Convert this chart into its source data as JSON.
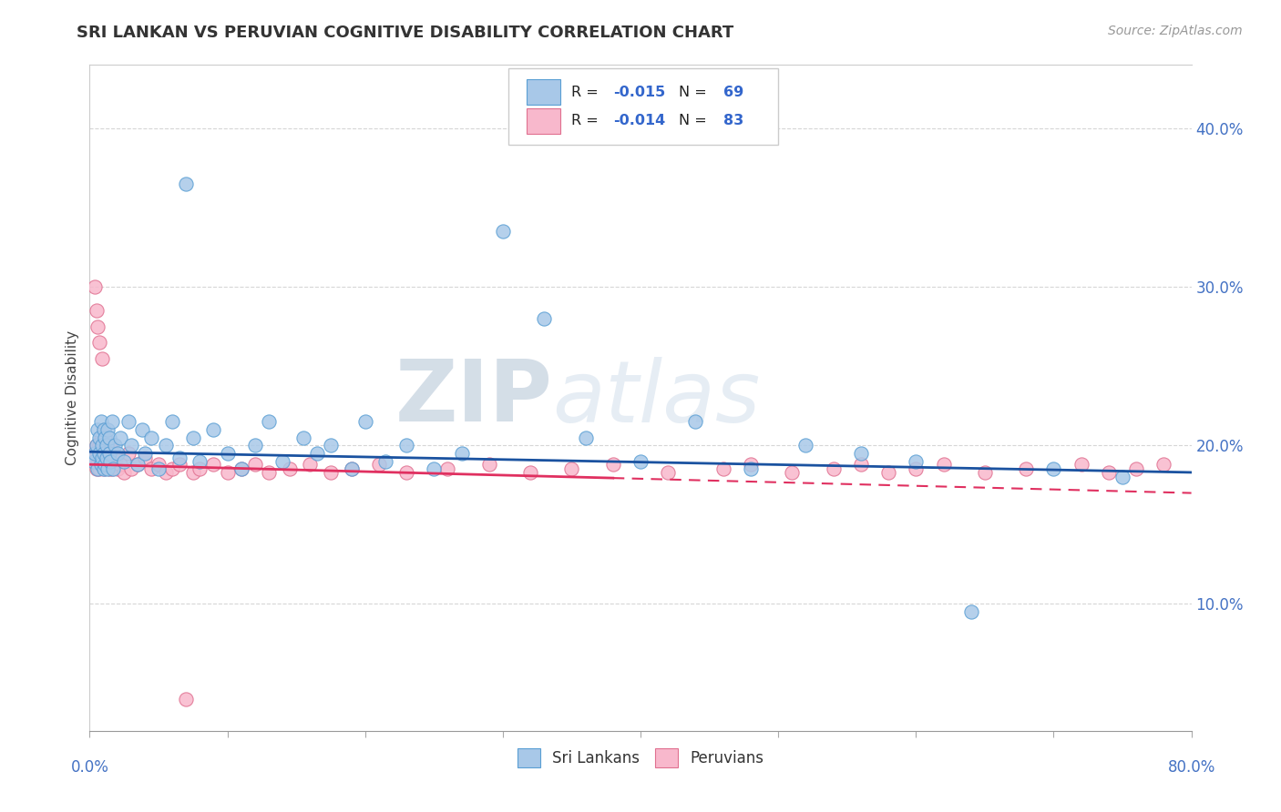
{
  "title": "SRI LANKAN VS PERUVIAN COGNITIVE DISABILITY CORRELATION CHART",
  "source": "Source: ZipAtlas.com",
  "ylabel": "Cognitive Disability",
  "xlim": [
    0.0,
    0.8
  ],
  "ylim": [
    0.02,
    0.44
  ],
  "yticks": [
    0.1,
    0.2,
    0.3,
    0.4
  ],
  "ytick_labels": [
    "10.0%",
    "20.0%",
    "30.0%",
    "40.0%"
  ],
  "sri_lankan_color": "#a8c8e8",
  "sri_lankan_edge": "#5a9fd4",
  "peruvian_color": "#f8b8cc",
  "peruvian_edge": "#e07090",
  "trend_sri_color": "#1a52a0",
  "trend_per_color": "#e03060",
  "legend_label1": "Sri Lankans",
  "legend_label2": "Peruvians",
  "watermark_zip": "ZIP",
  "watermark_atlas": "atlas",
  "background_color": "#ffffff",
  "grid_color": "#cccccc",
  "sri_x": [
    0.003,
    0.004,
    0.005,
    0.006,
    0.006,
    0.007,
    0.007,
    0.008,
    0.008,
    0.009,
    0.009,
    0.01,
    0.01,
    0.01,
    0.011,
    0.011,
    0.012,
    0.012,
    0.013,
    0.013,
    0.014,
    0.014,
    0.015,
    0.016,
    0.017,
    0.018,
    0.02,
    0.022,
    0.025,
    0.028,
    0.03,
    0.035,
    0.038,
    0.04,
    0.045,
    0.05,
    0.055,
    0.06,
    0.065,
    0.07,
    0.075,
    0.08,
    0.09,
    0.1,
    0.11,
    0.12,
    0.13,
    0.14,
    0.155,
    0.165,
    0.175,
    0.19,
    0.2,
    0.215,
    0.23,
    0.25,
    0.27,
    0.3,
    0.33,
    0.36,
    0.4,
    0.44,
    0.48,
    0.52,
    0.56,
    0.6,
    0.64,
    0.7,
    0.75
  ],
  "sri_y": [
    0.19,
    0.195,
    0.2,
    0.185,
    0.21,
    0.195,
    0.205,
    0.188,
    0.215,
    0.192,
    0.2,
    0.185,
    0.195,
    0.21,
    0.188,
    0.205,
    0.192,
    0.2,
    0.185,
    0.21,
    0.195,
    0.205,
    0.19,
    0.215,
    0.185,
    0.2,
    0.195,
    0.205,
    0.19,
    0.215,
    0.2,
    0.188,
    0.21,
    0.195,
    0.205,
    0.185,
    0.2,
    0.215,
    0.192,
    0.365,
    0.205,
    0.19,
    0.21,
    0.195,
    0.185,
    0.2,
    0.215,
    0.19,
    0.205,
    0.195,
    0.2,
    0.185,
    0.215,
    0.19,
    0.2,
    0.185,
    0.195,
    0.335,
    0.28,
    0.205,
    0.19,
    0.215,
    0.185,
    0.2,
    0.195,
    0.19,
    0.095,
    0.185,
    0.18
  ],
  "per_x": [
    0.003,
    0.004,
    0.004,
    0.005,
    0.005,
    0.005,
    0.006,
    0.006,
    0.006,
    0.007,
    0.007,
    0.007,
    0.008,
    0.008,
    0.008,
    0.009,
    0.009,
    0.009,
    0.01,
    0.01,
    0.01,
    0.01,
    0.01,
    0.011,
    0.011,
    0.012,
    0.012,
    0.013,
    0.013,
    0.014,
    0.014,
    0.015,
    0.015,
    0.016,
    0.017,
    0.018,
    0.019,
    0.02,
    0.022,
    0.025,
    0.028,
    0.03,
    0.035,
    0.04,
    0.045,
    0.05,
    0.055,
    0.06,
    0.065,
    0.07,
    0.075,
    0.08,
    0.09,
    0.1,
    0.11,
    0.12,
    0.13,
    0.145,
    0.16,
    0.175,
    0.19,
    0.21,
    0.23,
    0.26,
    0.29,
    0.32,
    0.35,
    0.38,
    0.42,
    0.46,
    0.48,
    0.51,
    0.54,
    0.56,
    0.58,
    0.6,
    0.62,
    0.65,
    0.68,
    0.72,
    0.74,
    0.76,
    0.78
  ],
  "per_y": [
    0.19,
    0.3,
    0.195,
    0.285,
    0.2,
    0.185,
    0.275,
    0.195,
    0.188,
    0.265,
    0.2,
    0.185,
    0.205,
    0.195,
    0.19,
    0.255,
    0.2,
    0.188,
    0.21,
    0.195,
    0.185,
    0.2,
    0.188,
    0.205,
    0.192,
    0.195,
    0.188,
    0.2,
    0.192,
    0.185,
    0.195,
    0.2,
    0.188,
    0.185,
    0.195,
    0.188,
    0.192,
    0.185,
    0.188,
    0.183,
    0.195,
    0.185,
    0.188,
    0.192,
    0.185,
    0.188,
    0.183,
    0.185,
    0.188,
    0.04,
    0.183,
    0.185,
    0.188,
    0.183,
    0.185,
    0.188,
    0.183,
    0.185,
    0.188,
    0.183,
    0.185,
    0.188,
    0.183,
    0.185,
    0.188,
    0.183,
    0.185,
    0.188,
    0.183,
    0.185,
    0.188,
    0.183,
    0.185,
    0.188,
    0.183,
    0.185,
    0.188,
    0.183,
    0.185,
    0.188,
    0.183,
    0.185,
    0.188
  ]
}
